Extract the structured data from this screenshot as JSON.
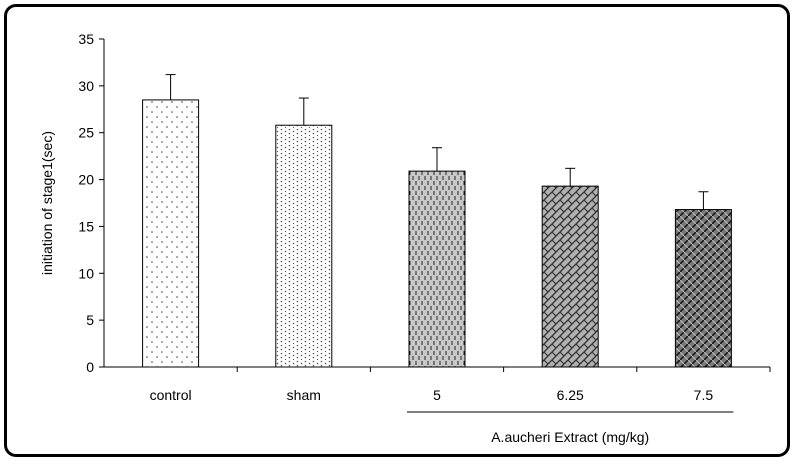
{
  "chart_data": {
    "type": "bar",
    "title": "",
    "xlabel": "",
    "ylabel": "initiation of stage1(sec)",
    "ylim": [
      0,
      35
    ],
    "yticks": [
      0,
      5,
      10,
      15,
      20,
      25,
      30,
      35
    ],
    "grid": false,
    "legend": "none",
    "categories": [
      "control",
      "sham",
      "5",
      "6.25",
      "7.5"
    ],
    "values": [
      28.5,
      25.8,
      20.9,
      19.3,
      16.8
    ],
    "error_upper": [
      2.7,
      2.9,
      2.5,
      1.9,
      1.9
    ],
    "bar_patterns": [
      "sparse-dots",
      "chevron-dots",
      "vertical-dashes",
      "crosshatch",
      "dark-weave"
    ],
    "bar_fills": [
      "#ffffff",
      "#ffffff",
      "#c8c8c8",
      "#a8a8a8",
      "#6a6a6a"
    ],
    "group_label": "A.aucheri Extract (mg/kg)",
    "group_categories": [
      "5",
      "6.25",
      "7.5"
    ]
  }
}
